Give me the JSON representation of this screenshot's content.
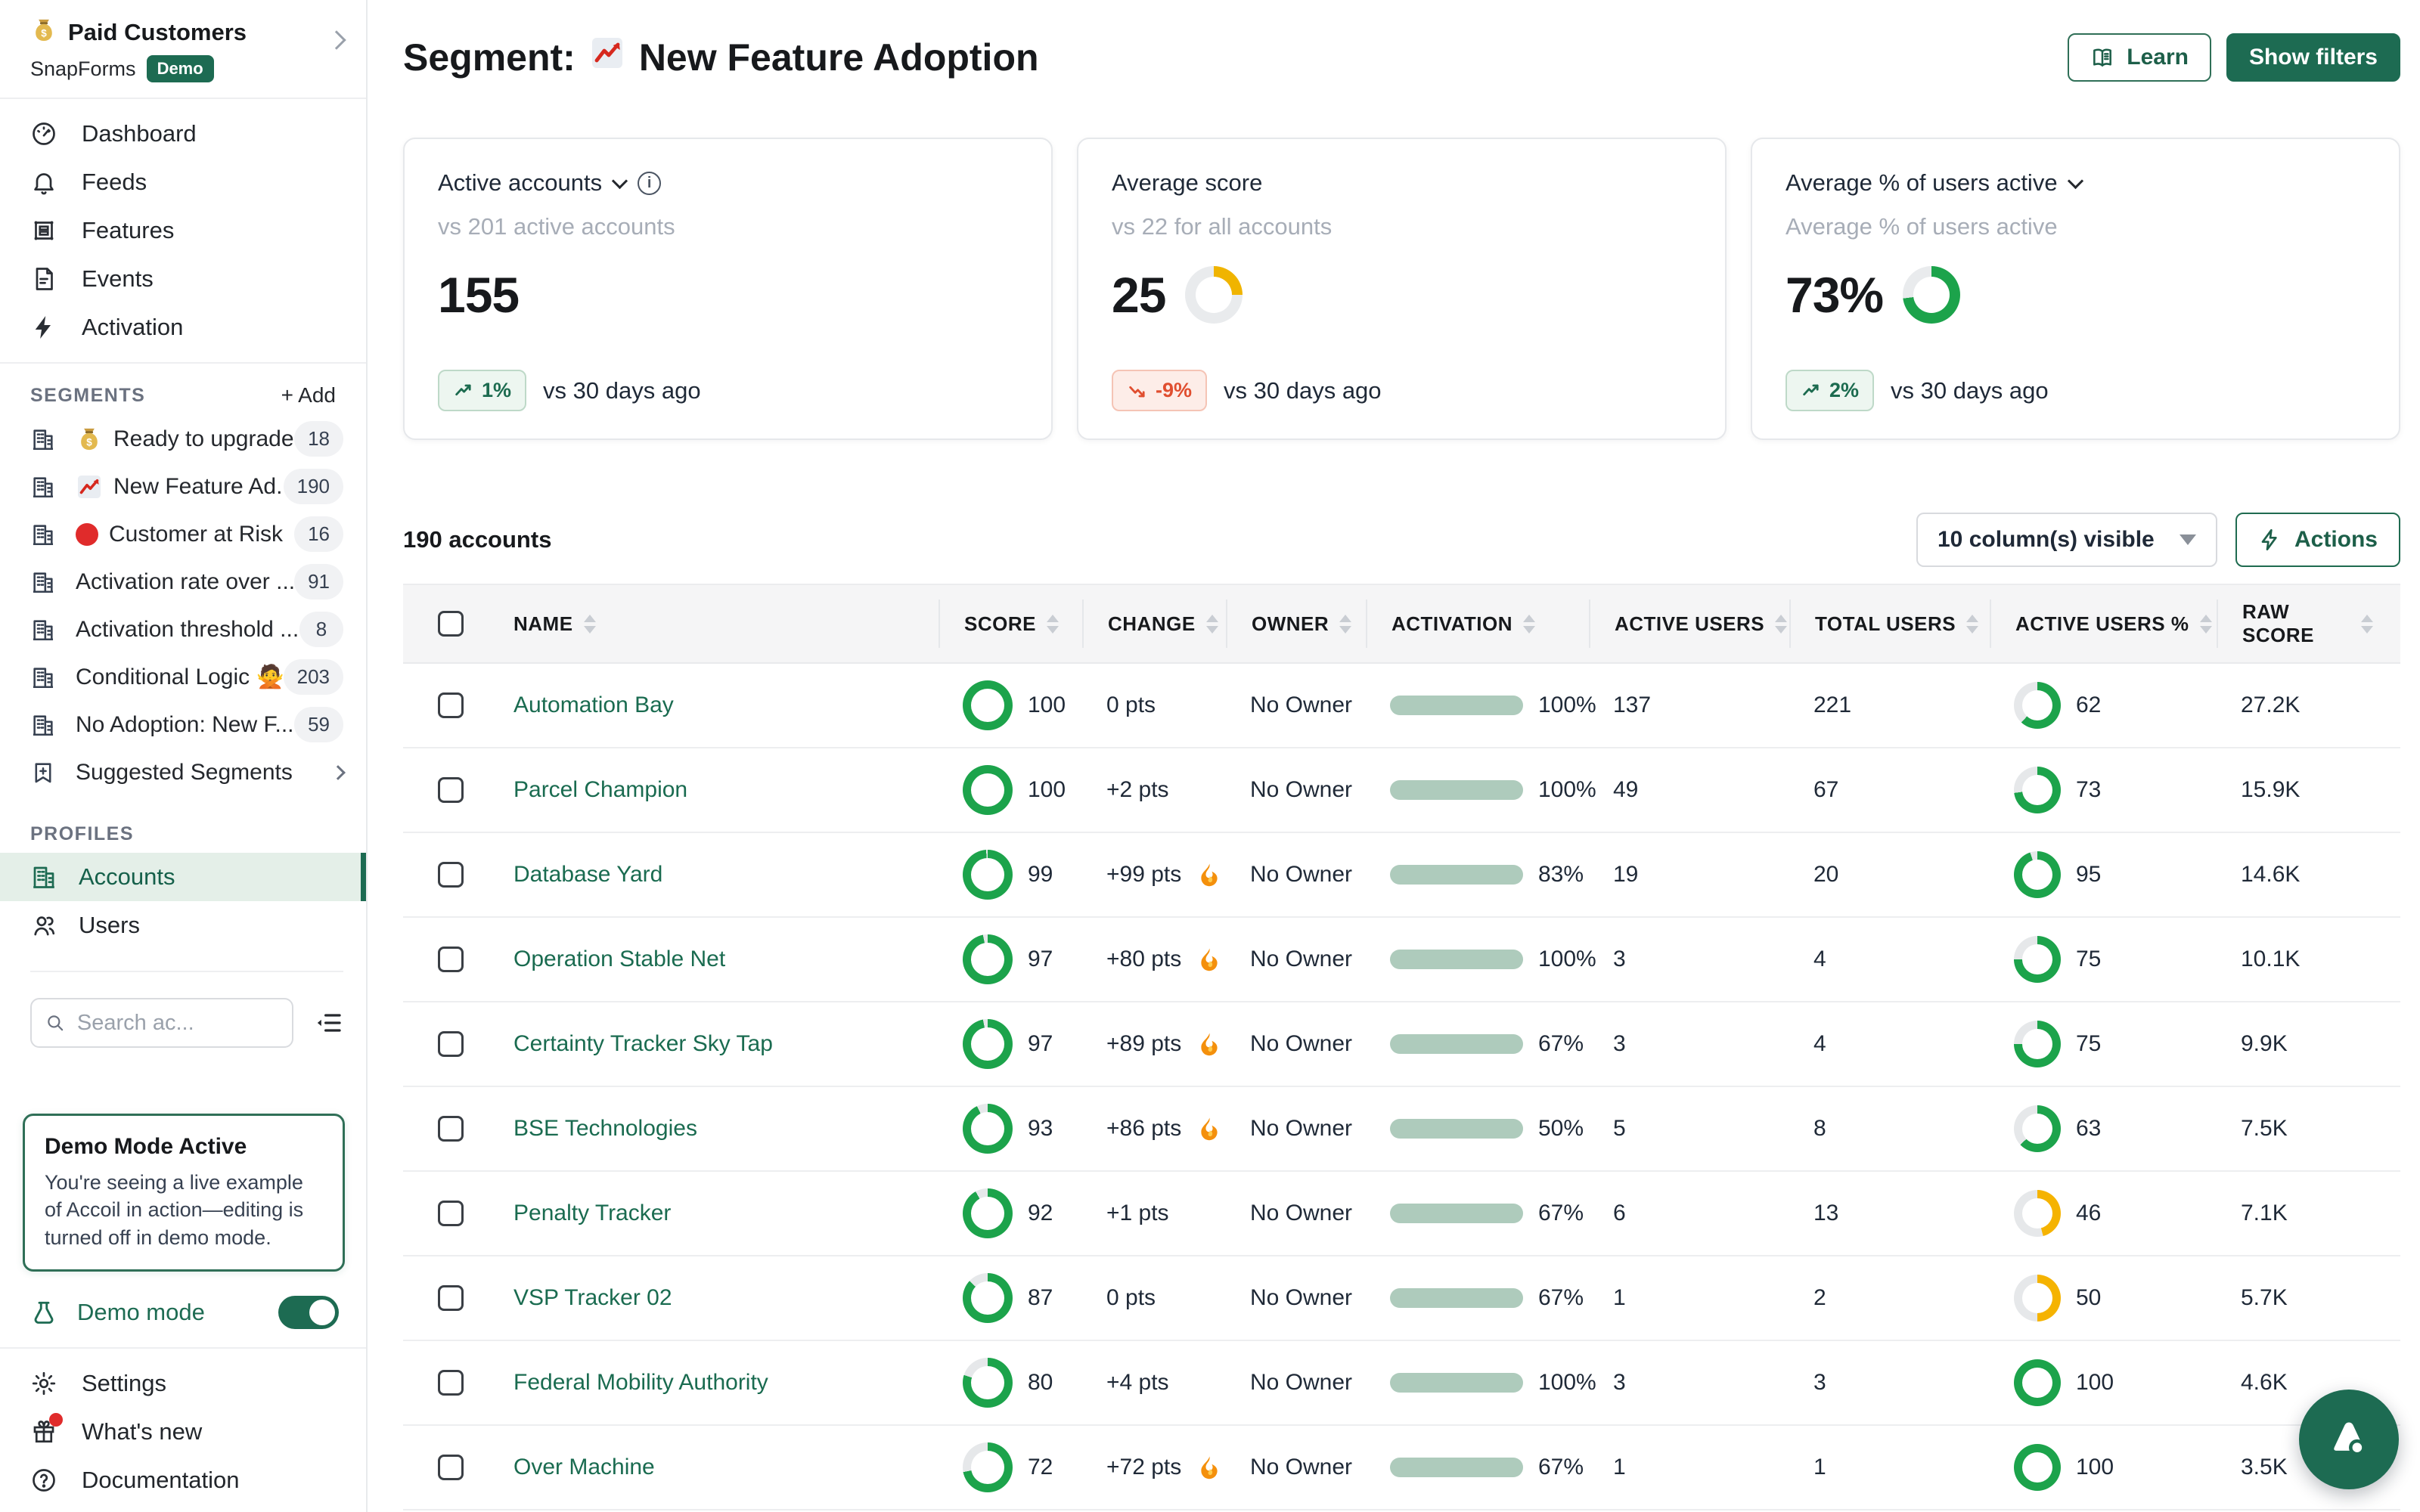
{
  "sidebar": {
    "workspace": {
      "title": "Paid Customers",
      "subtitle": "SnapForms",
      "badge": "Demo",
      "icon": "money-bag"
    },
    "nav": [
      {
        "icon": "gauge-icon",
        "label": "Dashboard"
      },
      {
        "icon": "bell-icon",
        "label": "Feeds"
      },
      {
        "icon": "module-icon",
        "label": "Features"
      },
      {
        "icon": "document-icon",
        "label": "Events"
      },
      {
        "icon": "bolt-icon",
        "label": "Activation"
      }
    ],
    "segments": {
      "title": "SEGMENTS",
      "add_label": "+ Add",
      "items": [
        {
          "glyph": "money-bag",
          "label": "Ready to upgrade",
          "count": "18"
        },
        {
          "glyph": "chart-up",
          "label": "New Feature Ad...",
          "count": "190"
        },
        {
          "glyph": "red-dot",
          "label": "Customer at Risk",
          "count": "16"
        },
        {
          "glyph": null,
          "label": "Activation rate over ...",
          "count": "91"
        },
        {
          "glyph": null,
          "label": "Activation threshold ...",
          "count": "8"
        },
        {
          "glyph": null,
          "label": "Conditional Logic 🙅",
          "count": "203"
        },
        {
          "glyph": null,
          "label": "No Adoption: New F...",
          "count": "59"
        }
      ],
      "suggested_label": "Suggested Segments"
    },
    "profiles": {
      "title": "PROFILES",
      "accounts_label": "Accounts",
      "users_label": "Users"
    },
    "search_placeholder": "Search ac...",
    "demo_box": {
      "title": "Demo Mode Active",
      "body": "You're seeing a live example of Accoil in action—editing is turned off in demo mode."
    },
    "demo_mode_label": "Demo mode",
    "footer": [
      {
        "icon": "gear-icon",
        "label": "Settings"
      },
      {
        "icon": "gift-icon",
        "label": "What's new"
      },
      {
        "icon": "help-icon",
        "label": "Documentation"
      }
    ]
  },
  "header": {
    "title_prefix": "Segment:",
    "title": "New Feature Adoption",
    "learn_label": "Learn",
    "show_filters_label": "Show filters"
  },
  "cards": [
    {
      "label": "Active accounts",
      "subtitle": "vs 201 active accounts",
      "value": "155",
      "donut": null,
      "trend": {
        "dir": "up",
        "label": "1%"
      },
      "trend_suffix": "vs 30 days ago"
    },
    {
      "label": "Average score",
      "subtitle": "vs 22 for all accounts",
      "value": "25",
      "donut": {
        "percent": 25,
        "color": "#F0B400"
      },
      "trend": {
        "dir": "down",
        "label": "-9%"
      },
      "trend_suffix": "vs 30 days ago"
    },
    {
      "label": "Average % of users active",
      "subtitle": "Average % of users active",
      "value": "73%",
      "donut": {
        "percent": 73,
        "color": "#1CA34B"
      },
      "trend": {
        "dir": "up",
        "label": "2%"
      },
      "trend_suffix": "vs 30 days ago"
    }
  ],
  "table": {
    "summary": "190 accounts",
    "columns_select": "10 column(s) visible",
    "actions_label": "Actions",
    "headers": [
      "NAME",
      "SCORE",
      "CHANGE",
      "OWNER",
      "ACTIVATION",
      "ACTIVE USERS",
      "TOTAL USERS",
      "ACTIVE USERS %",
      "RAW SCORE"
    ],
    "rows": [
      {
        "name": "Automation Bay",
        "score": 100,
        "change": "0 pts",
        "fire": false,
        "owner": "No Owner",
        "activation": 100,
        "active_users": "137",
        "total_users": "221",
        "active_pct": 62,
        "active_pct_color": "#1CA34B",
        "raw": "27.2K"
      },
      {
        "name": "Parcel Champion",
        "score": 100,
        "change": "+2 pts",
        "fire": false,
        "owner": "No Owner",
        "activation": 100,
        "active_users": "49",
        "total_users": "67",
        "active_pct": 73,
        "active_pct_color": "#1CA34B",
        "raw": "15.9K"
      },
      {
        "name": "Database Yard",
        "score": 99,
        "change": "+99 pts",
        "fire": true,
        "owner": "No Owner",
        "activation": 83,
        "active_users": "19",
        "total_users": "20",
        "active_pct": 95,
        "active_pct_color": "#1CA34B",
        "raw": "14.6K"
      },
      {
        "name": "Operation Stable Net",
        "score": 97,
        "change": "+80 pts",
        "fire": true,
        "owner": "No Owner",
        "activation": 100,
        "active_users": "3",
        "total_users": "4",
        "active_pct": 75,
        "active_pct_color": "#1CA34B",
        "raw": "10.1K"
      },
      {
        "name": "Certainty Tracker Sky Tap",
        "score": 97,
        "change": "+89 pts",
        "fire": true,
        "owner": "No Owner",
        "activation": 67,
        "active_users": "3",
        "total_users": "4",
        "active_pct": 75,
        "active_pct_color": "#1CA34B",
        "raw": "9.9K"
      },
      {
        "name": "BSE Technologies",
        "score": 93,
        "change": "+86 pts",
        "fire": true,
        "owner": "No Owner",
        "activation": 50,
        "active_users": "5",
        "total_users": "8",
        "active_pct": 63,
        "active_pct_color": "#1CA34B",
        "raw": "7.5K"
      },
      {
        "name": "Penalty Tracker",
        "score": 92,
        "change": "+1 pts",
        "fire": false,
        "owner": "No Owner",
        "activation": 67,
        "active_users": "6",
        "total_users": "13",
        "active_pct": 46,
        "active_pct_color": "#F5B301",
        "raw": "7.1K"
      },
      {
        "name": "VSP Tracker 02",
        "score": 87,
        "change": "0 pts",
        "fire": false,
        "owner": "No Owner",
        "activation": 67,
        "active_users": "1",
        "total_users": "2",
        "active_pct": 50,
        "active_pct_color": "#F5B301",
        "raw": "5.7K"
      },
      {
        "name": "Federal Mobility Authority",
        "score": 80,
        "change": "+4 pts",
        "fire": false,
        "owner": "No Owner",
        "activation": 100,
        "active_users": "3",
        "total_users": "3",
        "active_pct": 100,
        "active_pct_color": "#1CA34B",
        "raw": "4.6K"
      },
      {
        "name": "Over Machine",
        "score": 72,
        "change": "+72 pts",
        "fire": true,
        "owner": "No Owner",
        "activation": 67,
        "active_users": "1",
        "total_users": "1",
        "active_pct": 100,
        "active_pct_color": "#1CA34B",
        "raw": "3.5K"
      }
    ]
  },
  "colors": {
    "brand": "#1D6B52",
    "donut_green": "#1CA34B",
    "donut_yellow": "#F5B301",
    "bar_green": "#2E6B52",
    "bar_track": "#AECBBC",
    "trend_up": "#1C6B4F",
    "trend_down": "#E04E2F"
  }
}
